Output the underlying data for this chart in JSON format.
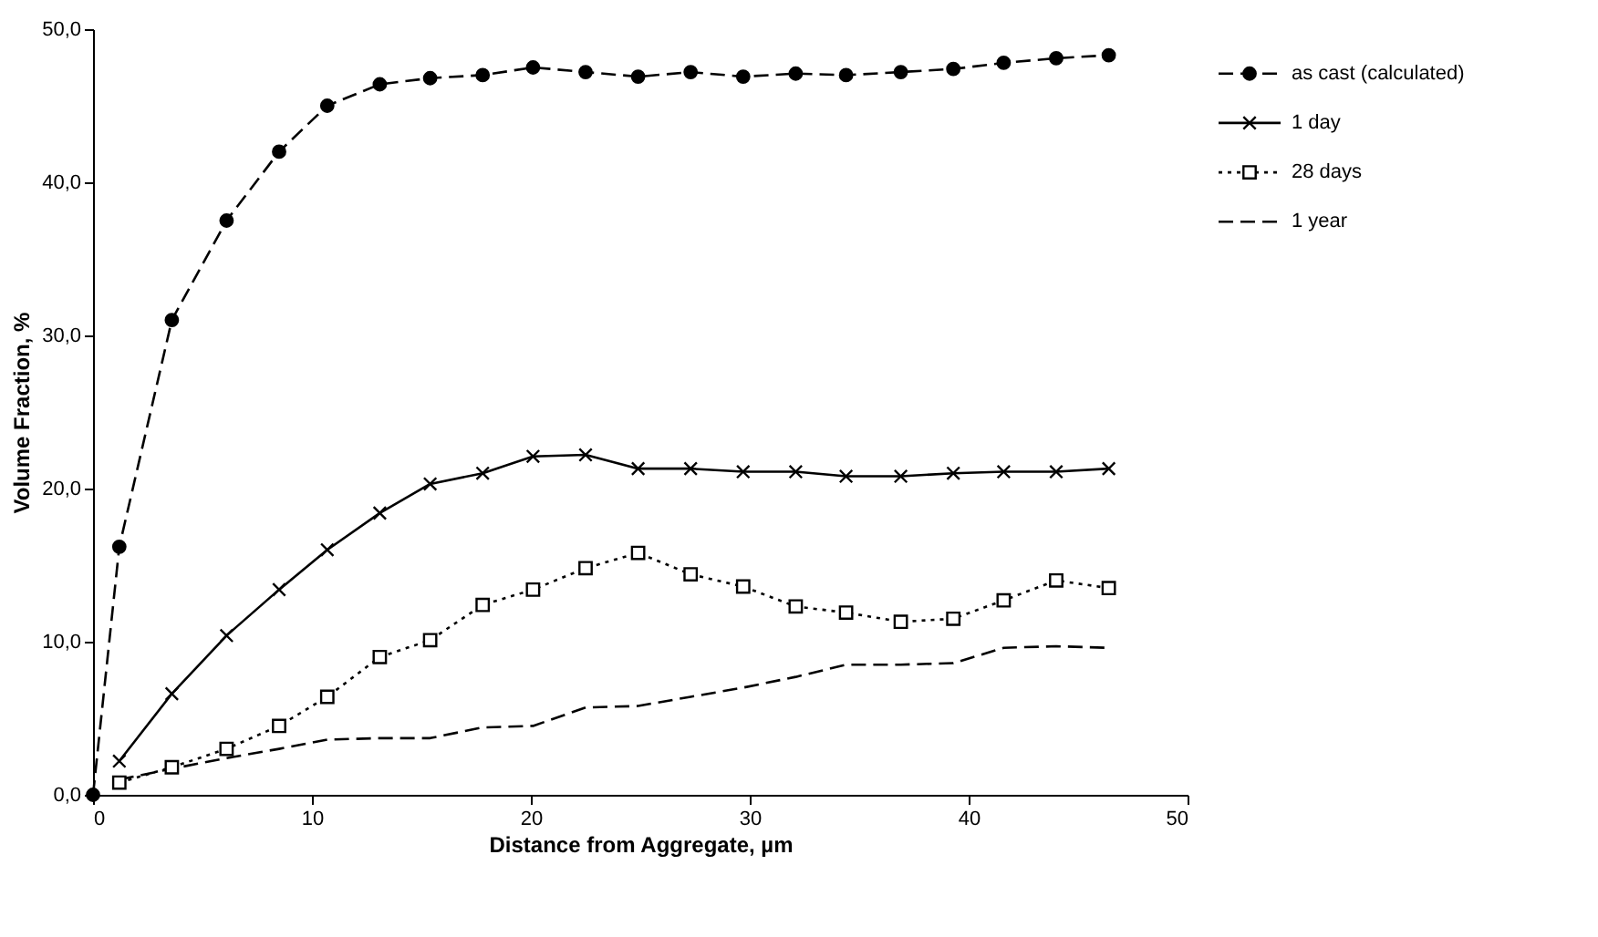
{
  "chart_data": {
    "type": "line",
    "xlabel": "Distance from Aggregate,  µm",
    "ylabel": "Volume Fraction, %",
    "xlim": [
      0,
      50
    ],
    "xticks": [
      0,
      10,
      20,
      30,
      40,
      50
    ],
    "ylim": [
      0,
      50
    ],
    "yticks": [
      {
        "value": 0,
        "label": "0,0"
      },
      {
        "value": 10,
        "label": "10,0"
      },
      {
        "value": 20,
        "label": "20,0"
      },
      {
        "value": 30,
        "label": "30,0"
      },
      {
        "value": 40,
        "label": "40,0"
      },
      {
        "value": 50,
        "label": "50,0"
      }
    ],
    "grid": false,
    "legend": "right",
    "series": [
      {
        "name": "as cast (calculated)",
        "color": "#000000",
        "marker": "circle",
        "line_style": "dashed",
        "x": [
          0,
          1.2,
          3.6,
          6.1,
          8.5,
          10.7,
          13.1,
          15.4,
          17.8,
          20.1,
          22.5,
          24.9,
          27.3,
          29.7,
          32.1,
          34.4,
          36.9,
          39.3,
          41.6,
          44.0,
          46.4
        ],
        "values": [
          0,
          16.2,
          31.0,
          37.5,
          42.0,
          45.0,
          46.4,
          46.8,
          47.0,
          47.5,
          47.2,
          46.9,
          47.2,
          46.9,
          47.1,
          47.0,
          47.2,
          47.4,
          47.8,
          48.1,
          48.3
        ]
      },
      {
        "name": "1 day",
        "color": "#000000",
        "marker": "cross",
        "line_style": "solid",
        "x": [
          1.2,
          3.6,
          6.1,
          8.5,
          10.7,
          13.1,
          15.4,
          17.8,
          20.1,
          22.5,
          24.9,
          27.3,
          29.7,
          32.1,
          34.4,
          36.9,
          39.3,
          41.6,
          44.0,
          46.4
        ],
        "values": [
          2.2,
          6.6,
          10.4,
          13.4,
          16.0,
          18.4,
          20.3,
          21.0,
          22.1,
          22.2,
          21.3,
          21.3,
          21.1,
          21.1,
          20.8,
          20.8,
          21.0,
          21.1,
          21.1,
          21.3
        ]
      },
      {
        "name": "28 days",
        "color": "#000000",
        "marker": "square",
        "line_style": "dotted",
        "x": [
          1.2,
          3.6,
          6.1,
          8.5,
          10.7,
          13.1,
          15.4,
          17.8,
          20.1,
          22.5,
          24.9,
          27.3,
          29.7,
          32.1,
          34.4,
          36.9,
          39.3,
          41.6,
          44.0,
          46.4
        ],
        "values": [
          0.8,
          1.8,
          3.0,
          4.5,
          6.4,
          9.0,
          10.1,
          12.4,
          13.4,
          14.8,
          15.8,
          14.4,
          13.6,
          12.3,
          11.9,
          11.3,
          11.5,
          12.7,
          14.0,
          13.5
        ]
      },
      {
        "name": "1 year",
        "color": "#000000",
        "marker": "none",
        "line_style": "dashed",
        "x": [
          1.2,
          3.6,
          6.1,
          8.5,
          10.7,
          13.1,
          15.4,
          17.8,
          20.1,
          22.5,
          24.9,
          27.3,
          29.7,
          32.1,
          34.4,
          36.9,
          39.3,
          41.6,
          44.0,
          46.4
        ],
        "values": [
          1.0,
          1.7,
          2.4,
          3.0,
          3.6,
          3.7,
          3.7,
          4.4,
          4.5,
          5.7,
          5.8,
          6.4,
          7.0,
          7.7,
          8.5,
          8.5,
          8.6,
          9.6,
          9.7,
          9.6
        ]
      }
    ]
  }
}
